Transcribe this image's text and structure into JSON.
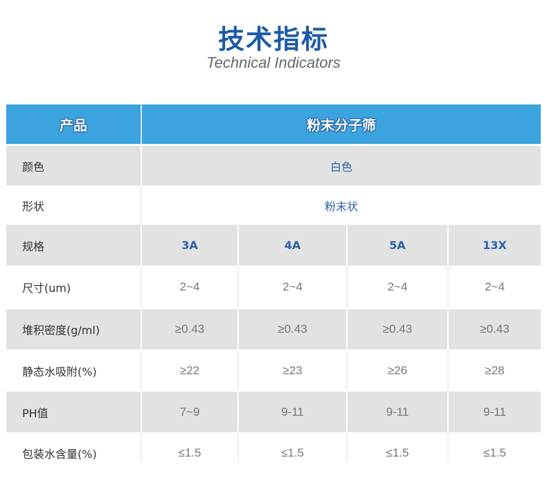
{
  "title": "技术指标",
  "subtitle": "Technical Indicators",
  "header": {
    "label": "产品",
    "product": "粉末分子筛"
  },
  "rows": [
    {
      "label": "颜色",
      "span": "白色"
    },
    {
      "label": "形状",
      "span": "粉末状"
    },
    {
      "label": "规格",
      "values": [
        "3A",
        "4A",
        "5A",
        "13X"
      ]
    },
    {
      "label": "尺寸(um)",
      "values": [
        "2~4",
        "2~4",
        "2~4",
        "2~4"
      ]
    },
    {
      "label": "堆积密度(g/ml)",
      "values": [
        "≥0.43",
        "≥0.43",
        "≥0.43",
        "≥0.43"
      ]
    },
    {
      "label": "静态水吸附(%)",
      "values": [
        "≥22",
        "≥23",
        "≥26",
        "≥28"
      ]
    },
    {
      "label": "PH值",
      "values": [
        "7~9",
        "9-11",
        "9-11",
        "9-11"
      ]
    },
    {
      "label": "包装水含量(%)",
      "values": [
        "≤1.5",
        "≤1.5",
        "≤1.5",
        "≤1.5"
      ]
    }
  ],
  "colors": {
    "header": "#3ba3dd",
    "title": "#1c5aa6",
    "row_alt": "#e2e2e2"
  }
}
